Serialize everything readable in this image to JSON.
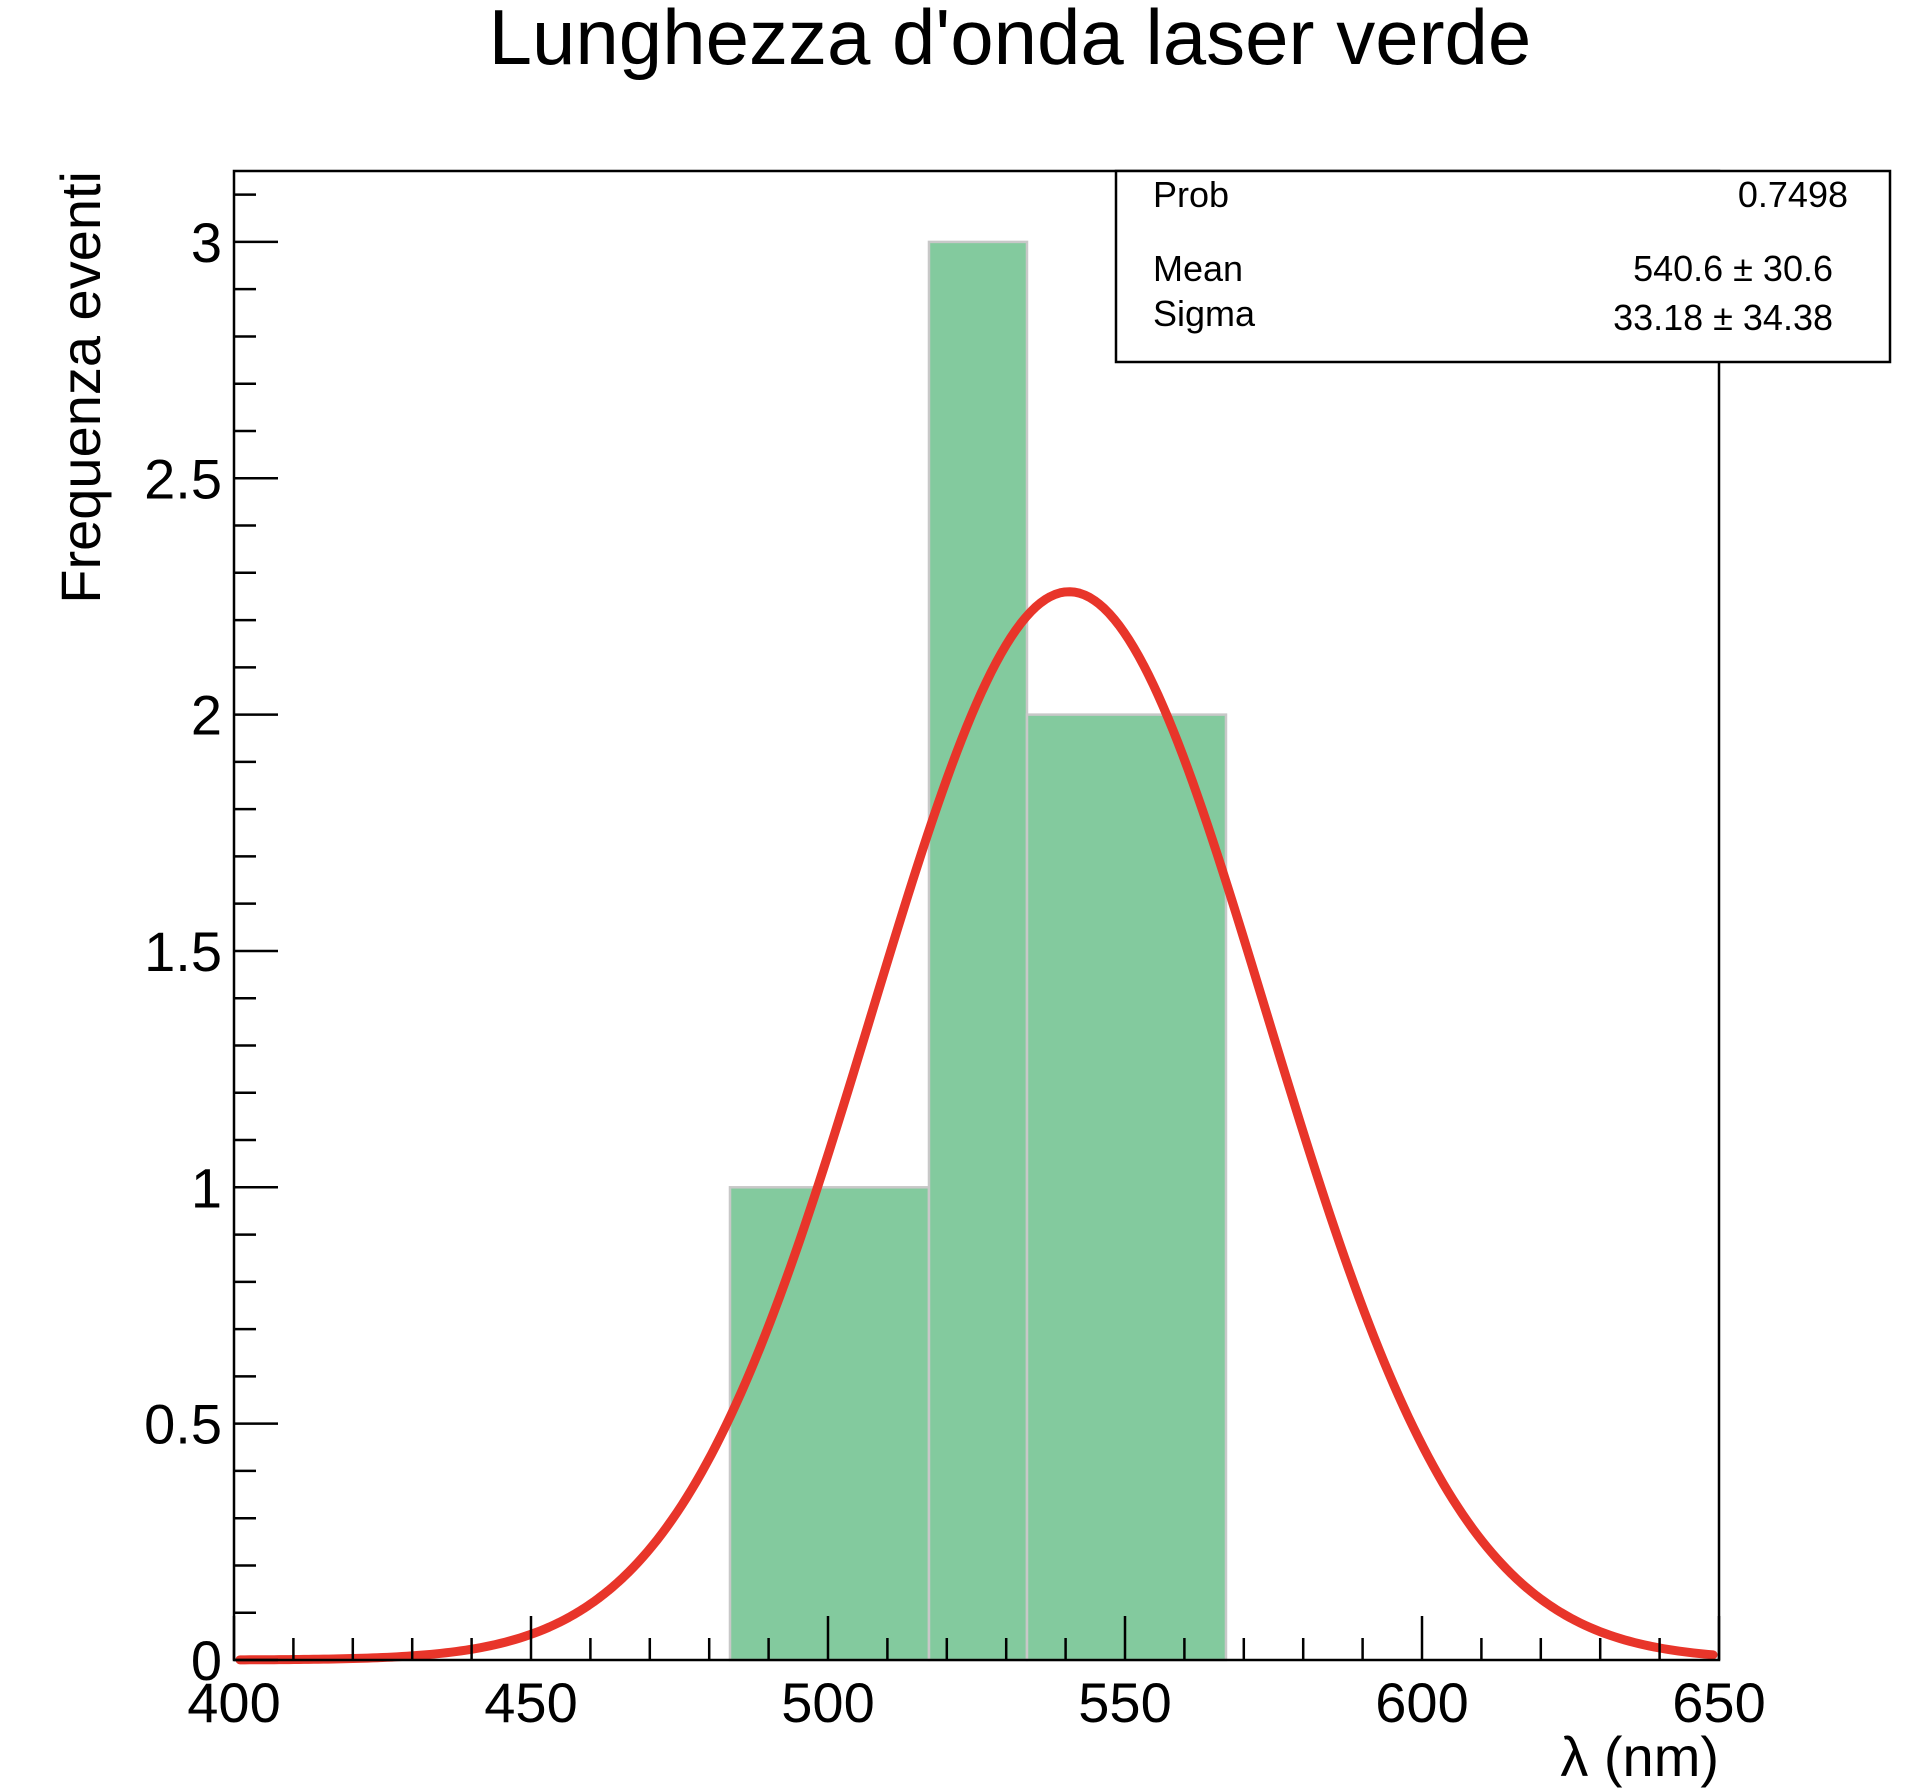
{
  "chart_data": {
    "type": "bar",
    "title": "Lunghezza d'onda laser verde",
    "xlabel": "λ (nm)",
    "ylabel": "Frequenza eventi",
    "xlim": [
      400,
      650
    ],
    "ylim": [
      0,
      3.15
    ],
    "x_ticks": [
      "400",
      "450",
      "500",
      "550",
      "600",
      "650"
    ],
    "y_ticks": [
      "0",
      "0.5",
      "1",
      "1.5",
      "2",
      "2.5",
      "3"
    ],
    "bins": [
      {
        "x0": 483.5,
        "x1": 517,
        "value": 1
      },
      {
        "x0": 517,
        "x1": 533.5,
        "value": 3
      },
      {
        "x0": 533.5,
        "x1": 567,
        "value": 2
      }
    ],
    "fit": {
      "type": "gaussian",
      "mean": 540.6,
      "sigma": 33.18,
      "amplitude": 2.26,
      "xrange": [
        401,
        649
      ]
    },
    "stats": {
      "rows": [
        {
          "label": "Prob",
          "value": "0.7498"
        },
        {
          "label": "Mean",
          "value": "540.6 ± 30.6"
        },
        {
          "label": "Sigma",
          "value": "33.18 ± 34.38"
        }
      ]
    },
    "colors": {
      "bar_fill": "#83ca9e",
      "bar_edge": "#c8c8c8",
      "fit_line": "#e8352a",
      "axis": "#000000"
    }
  }
}
